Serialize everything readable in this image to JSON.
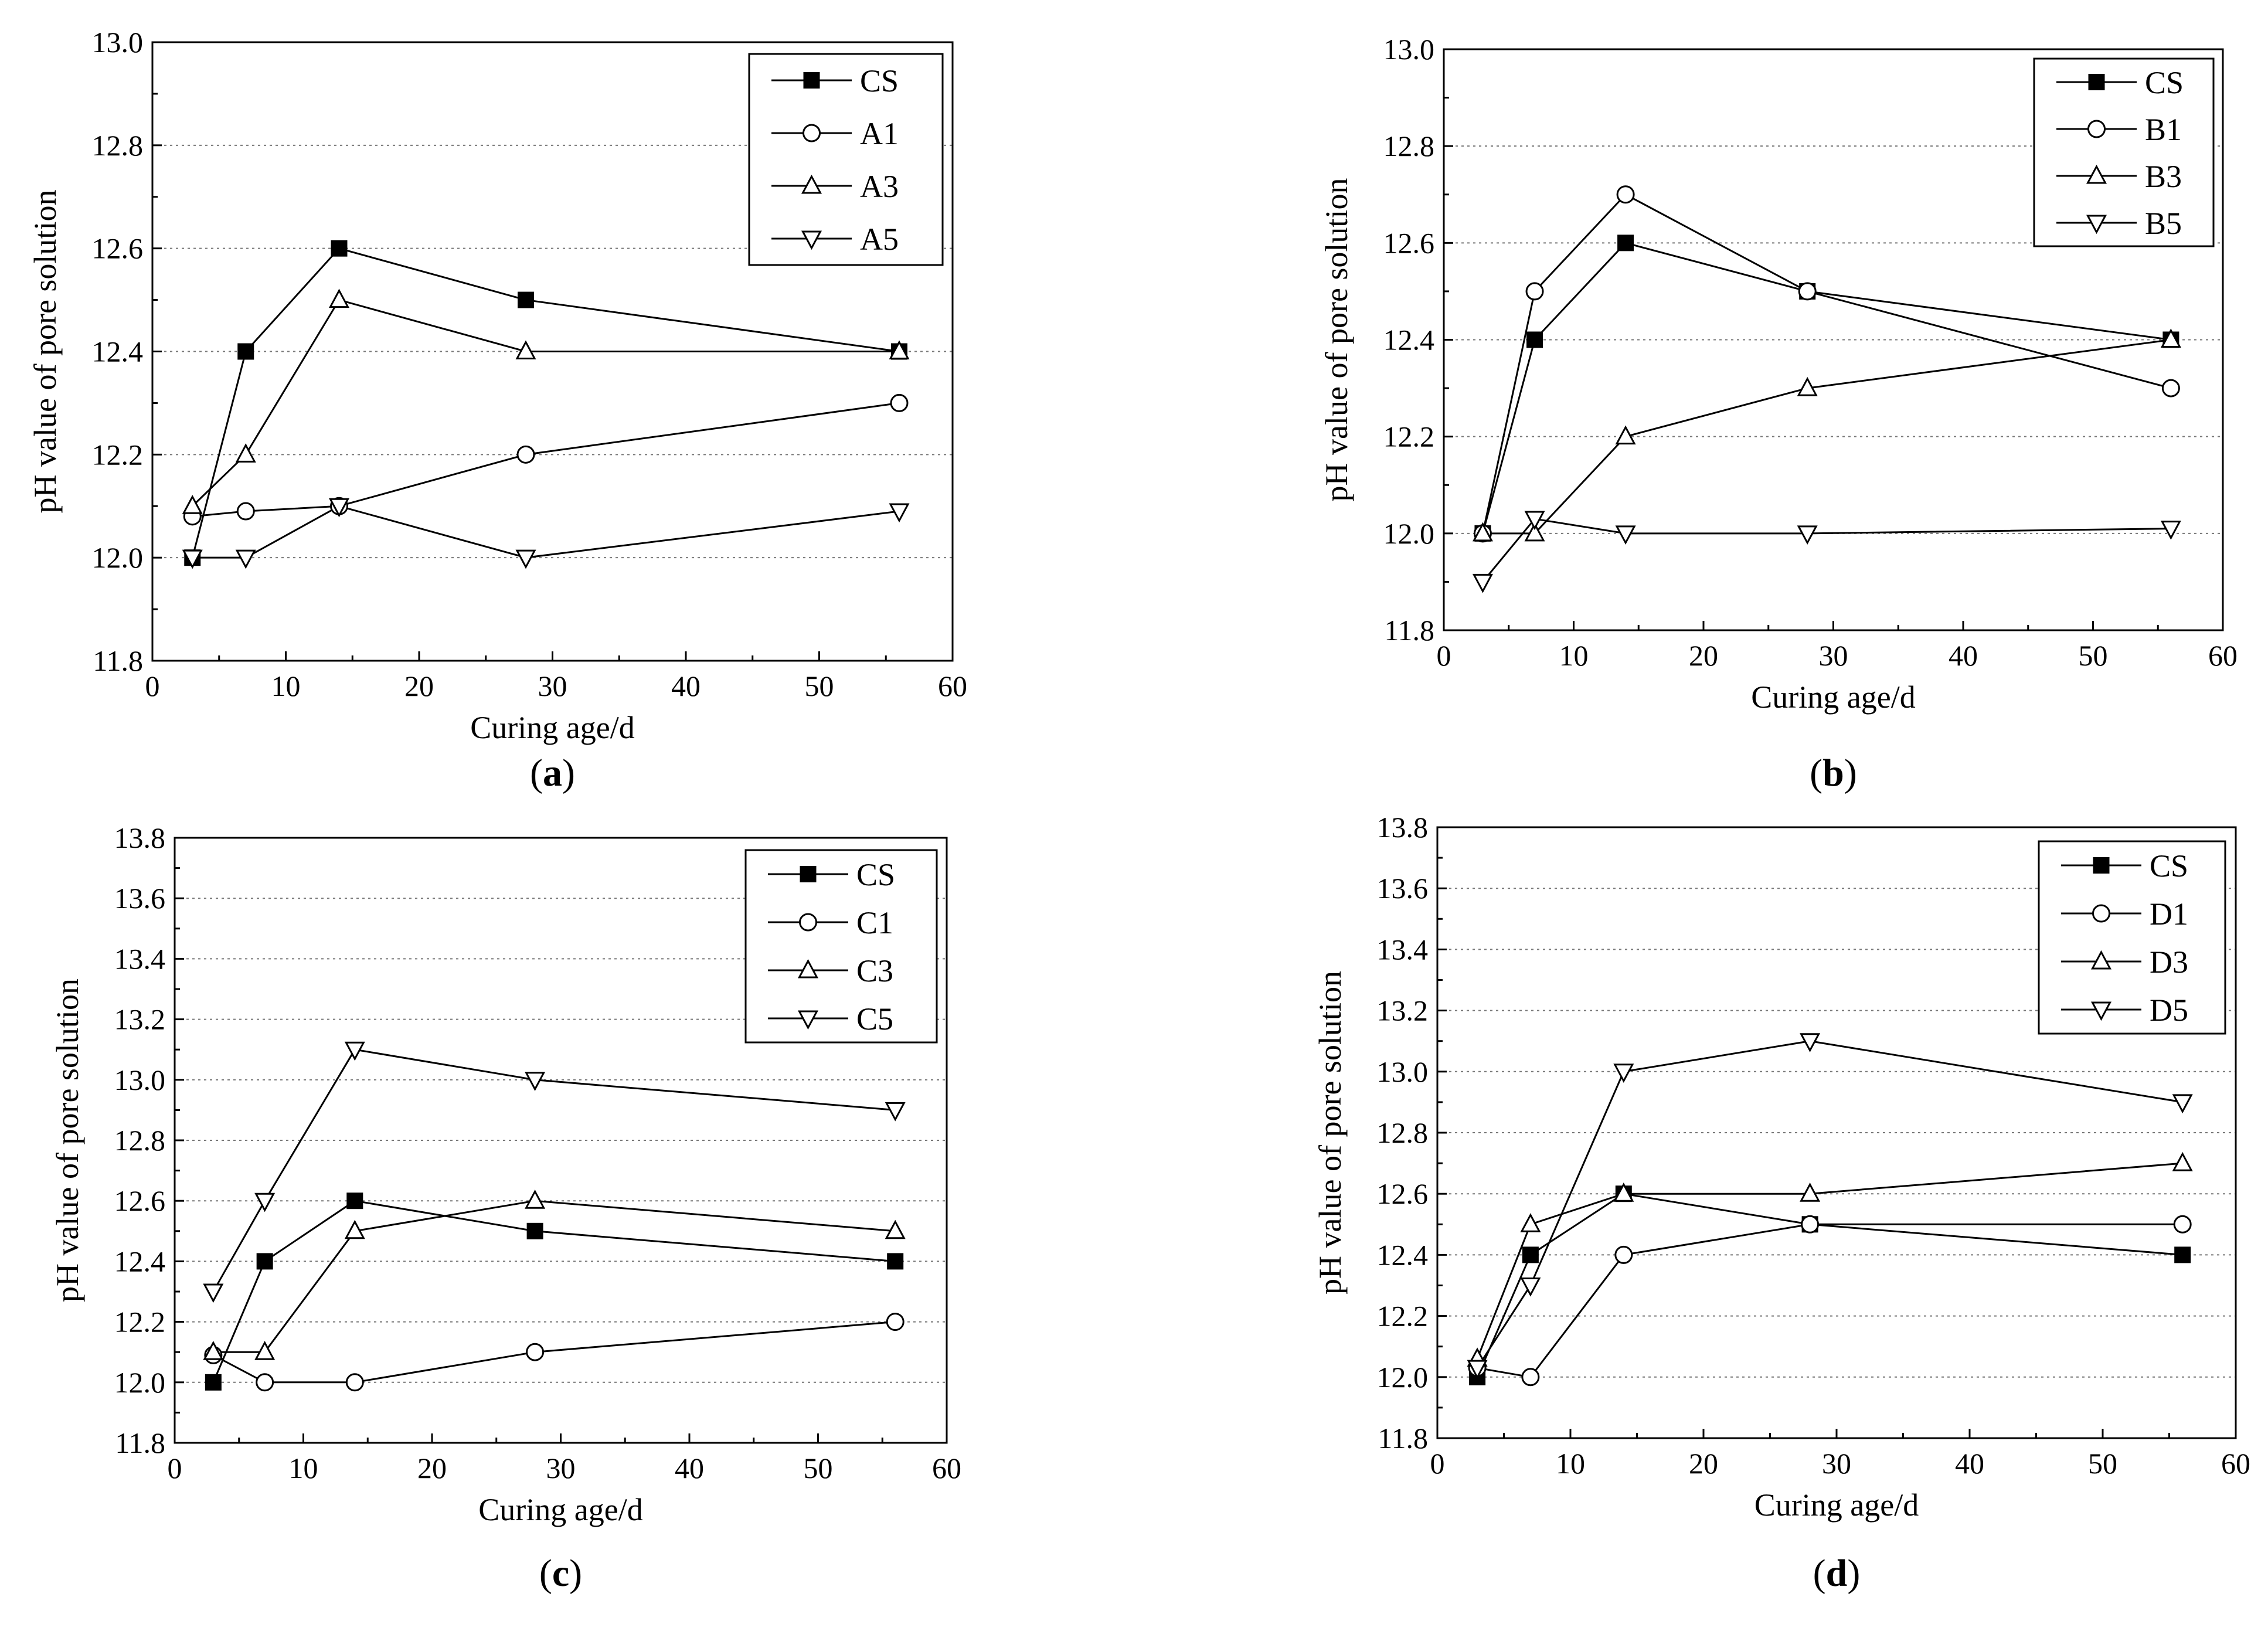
{
  "chart_data": [
    {
      "type": "line",
      "panel_label": "a",
      "xlabel": "Curing age/d",
      "ylabel": "pH value of pore solution",
      "xlim": [
        0,
        60
      ],
      "ylim": [
        11.8,
        13.0
      ],
      "xticks": [
        0,
        10,
        20,
        30,
        40,
        50,
        60
      ],
      "yticks": [
        11.8,
        12.0,
        12.2,
        12.4,
        12.6,
        12.8,
        13.0
      ],
      "ytick_labels": [
        "11.8",
        "12.0",
        "12.2",
        "12.4",
        "12.6",
        "12.8",
        "13.0"
      ],
      "grid": "horizontal dotted",
      "legend_position": "top-right",
      "x": [
        3,
        7,
        14,
        28,
        56
      ],
      "series": [
        {
          "name": "CS",
          "marker": "square-filled",
          "values": [
            12.0,
            12.4,
            12.6,
            12.5,
            12.4
          ]
        },
        {
          "name": "A1",
          "marker": "circle-open",
          "values": [
            12.08,
            12.09,
            12.1,
            12.2,
            12.3
          ]
        },
        {
          "name": "A3",
          "marker": "triangle-up-open",
          "values": [
            12.1,
            12.2,
            12.5,
            12.4,
            12.4
          ]
        },
        {
          "name": "A5",
          "marker": "triangle-down-open",
          "values": [
            12.0,
            12.0,
            12.1,
            12.0,
            12.09
          ]
        }
      ]
    },
    {
      "type": "line",
      "panel_label": "b",
      "xlabel": "Curing age/d",
      "ylabel": "pH value of pore solution",
      "xlim": [
        0,
        60
      ],
      "ylim": [
        11.8,
        13.0
      ],
      "xticks": [
        0,
        10,
        20,
        30,
        40,
        50,
        60
      ],
      "yticks": [
        11.8,
        12.0,
        12.2,
        12.4,
        12.6,
        12.8,
        13.0
      ],
      "ytick_labels": [
        "11.8",
        "12.0",
        "12.2",
        "12.4",
        "12.6",
        "12.8",
        "13.0"
      ],
      "grid": "horizontal dotted",
      "legend_position": "top-right",
      "x": [
        3,
        7,
        14,
        28,
        56
      ],
      "series": [
        {
          "name": "CS",
          "marker": "square-filled",
          "values": [
            12.0,
            12.4,
            12.6,
            12.5,
            12.4
          ]
        },
        {
          "name": "B1",
          "marker": "circle-open",
          "values": [
            12.0,
            12.5,
            12.7,
            12.5,
            12.3
          ]
        },
        {
          "name": "B3",
          "marker": "triangle-up-open",
          "values": [
            12.0,
            12.0,
            12.2,
            12.3,
            12.4
          ]
        },
        {
          "name": "B5",
          "marker": "triangle-down-open",
          "values": [
            11.9,
            12.03,
            12.0,
            12.0,
            12.01
          ]
        }
      ]
    },
    {
      "type": "line",
      "panel_label": "c",
      "xlabel": "Curing age/d",
      "ylabel": "pH value of pore solution",
      "xlim": [
        0,
        60
      ],
      "ylim": [
        11.8,
        13.8
      ],
      "xticks": [
        0,
        10,
        20,
        30,
        40,
        50,
        60
      ],
      "yticks": [
        11.8,
        12.0,
        12.2,
        12.4,
        12.6,
        12.8,
        13.0,
        13.2,
        13.4,
        13.6,
        13.8
      ],
      "ytick_labels": [
        "11.8",
        "12.0",
        "12.2",
        "12.4",
        "12.6",
        "12.8",
        "13.0",
        "13.2",
        "13.4",
        "13.6",
        "13.8"
      ],
      "grid": "horizontal dotted",
      "legend_position": "top-right",
      "x": [
        3,
        7,
        14,
        28,
        56
      ],
      "series": [
        {
          "name": "CS",
          "marker": "square-filled",
          "values": [
            12.0,
            12.4,
            12.6,
            12.5,
            12.4
          ]
        },
        {
          "name": "C1",
          "marker": "circle-open",
          "values": [
            12.09,
            12.0,
            12.0,
            12.1,
            12.2
          ]
        },
        {
          "name": "C3",
          "marker": "triangle-up-open",
          "values": [
            12.1,
            12.1,
            12.5,
            12.6,
            12.5
          ]
        },
        {
          "name": "C5",
          "marker": "triangle-down-open",
          "values": [
            12.3,
            12.6,
            13.1,
            13.0,
            12.9
          ]
        }
      ]
    },
    {
      "type": "line",
      "panel_label": "d",
      "xlabel": "Curing age/d",
      "ylabel": "pH value of pore solution",
      "xlim": [
        0,
        60
      ],
      "ylim": [
        11.8,
        13.8
      ],
      "xticks": [
        0,
        10,
        20,
        30,
        40,
        50,
        60
      ],
      "yticks": [
        11.8,
        12.0,
        12.2,
        12.4,
        12.6,
        12.8,
        13.0,
        13.2,
        13.4,
        13.6,
        13.8
      ],
      "ytick_labels": [
        "11.8",
        "12.0",
        "12.2",
        "12.4",
        "12.6",
        "12.8",
        "13.0",
        "13.2",
        "13.4",
        "13.6",
        "13.8"
      ],
      "grid": "horizontal dotted",
      "legend_position": "top-right",
      "x": [
        3,
        7,
        14,
        28,
        56
      ],
      "series": [
        {
          "name": "CS",
          "marker": "square-filled",
          "values": [
            12.0,
            12.4,
            12.6,
            12.5,
            12.4
          ]
        },
        {
          "name": "D1",
          "marker": "circle-open",
          "values": [
            12.03,
            12.0,
            12.4,
            12.5,
            12.5
          ]
        },
        {
          "name": "D3",
          "marker": "triangle-up-open",
          "values": [
            12.06,
            12.5,
            12.6,
            12.6,
            12.7
          ]
        },
        {
          "name": "D5",
          "marker": "triangle-down-open",
          "values": [
            12.03,
            12.3,
            13.0,
            13.1,
            12.9
          ]
        }
      ]
    }
  ]
}
